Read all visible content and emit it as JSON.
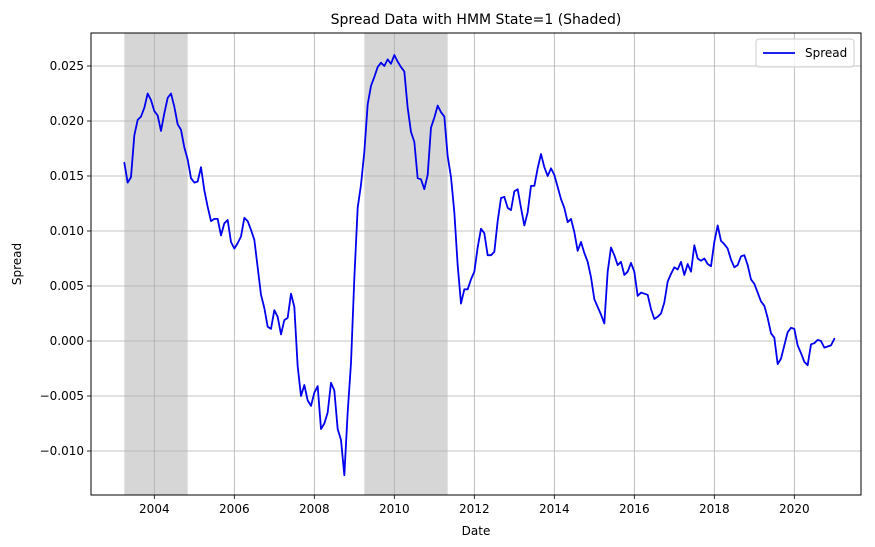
{
  "chart_data": {
    "type": "line",
    "title": "Spread Data with HMM State=1 (Shaded)",
    "xlabel": "Date",
    "ylabel": "Spread",
    "xlim": [
      "2002-06-01",
      "2021-09-01"
    ],
    "ylim": [
      -0.014,
      0.028
    ],
    "x_ticks": [
      "2004",
      "2006",
      "2008",
      "2010",
      "2012",
      "2014",
      "2016",
      "2018",
      "2020"
    ],
    "y_ticks": [
      "−0.010",
      "−0.005",
      "0.000",
      "0.005",
      "0.010",
      "0.015",
      "0.020",
      "0.025"
    ],
    "y_tick_values": [
      -0.01,
      -0.005,
      0.0,
      0.005,
      0.01,
      0.015,
      0.02,
      0.025
    ],
    "grid": true,
    "legend": {
      "placement": "top-right",
      "entries": [
        "Spread"
      ]
    },
    "shaded_regions": [
      {
        "start": "2003-04-01",
        "end": "2004-11-01",
        "color": "#d6d6d6"
      },
      {
        "start": "2009-04-01",
        "end": "2011-05-01",
        "color": "#d6d6d6"
      }
    ],
    "series": [
      {
        "name": "Spread",
        "color": "#0000ee",
        "points": [
          [
            "2003-04-01",
            0.0162
          ],
          [
            "2003-05-01",
            0.0144
          ],
          [
            "2003-06-01",
            0.0149
          ],
          [
            "2003-07-01",
            0.0187
          ],
          [
            "2003-08-01",
            0.0201
          ],
          [
            "2003-09-01",
            0.0204
          ],
          [
            "2003-10-01",
            0.0212
          ],
          [
            "2003-11-01",
            0.0225
          ],
          [
            "2003-12-01",
            0.0219
          ],
          [
            "2004-01-01",
            0.0209
          ],
          [
            "2004-02-01",
            0.0205
          ],
          [
            "2004-03-01",
            0.0191
          ],
          [
            "2004-04-01",
            0.0207
          ],
          [
            "2004-05-01",
            0.0221
          ],
          [
            "2004-06-01",
            0.0225
          ],
          [
            "2004-07-01",
            0.0213
          ],
          [
            "2004-08-01",
            0.0197
          ],
          [
            "2004-09-01",
            0.0192
          ],
          [
            "2004-10-01",
            0.0176
          ],
          [
            "2004-11-01",
            0.0165
          ],
          [
            "2004-12-01",
            0.0148
          ],
          [
            "2005-01-01",
            0.0144
          ],
          [
            "2005-02-01",
            0.0145
          ],
          [
            "2005-03-01",
            0.0158
          ],
          [
            "2005-04-01",
            0.0137
          ],
          [
            "2005-05-01",
            0.0122
          ],
          [
            "2005-06-01",
            0.0109
          ],
          [
            "2005-07-01",
            0.0111
          ],
          [
            "2005-08-01",
            0.0111
          ],
          [
            "2005-09-01",
            0.0096
          ],
          [
            "2005-10-01",
            0.0107
          ],
          [
            "2005-11-01",
            0.011
          ],
          [
            "2005-12-01",
            0.009
          ],
          [
            "2006-01-01",
            0.0084
          ],
          [
            "2006-02-01",
            0.0089
          ],
          [
            "2006-03-01",
            0.0095
          ],
          [
            "2006-04-01",
            0.0112
          ],
          [
            "2006-05-01",
            0.0109
          ],
          [
            "2006-06-01",
            0.0101
          ],
          [
            "2006-07-01",
            0.0092
          ],
          [
            "2006-08-01",
            0.0067
          ],
          [
            "2006-09-01",
            0.0042
          ],
          [
            "2006-10-01",
            0.003
          ],
          [
            "2006-11-01",
            0.0013
          ],
          [
            "2006-12-01",
            0.0011
          ],
          [
            "2007-01-01",
            0.0028
          ],
          [
            "2007-02-01",
            0.0022
          ],
          [
            "2007-03-01",
            0.0006
          ],
          [
            "2007-04-01",
            0.0019
          ],
          [
            "2007-05-01",
            0.0021
          ],
          [
            "2007-06-01",
            0.0043
          ],
          [
            "2007-07-01",
            0.0031
          ],
          [
            "2007-08-01",
            -0.0023
          ],
          [
            "2007-09-01",
            -0.005
          ],
          [
            "2007-10-01",
            -0.004
          ],
          [
            "2007-11-01",
            -0.0054
          ],
          [
            "2007-12-01",
            -0.0059
          ],
          [
            "2008-01-01",
            -0.0047
          ],
          [
            "2008-02-01",
            -0.0041
          ],
          [
            "2008-03-01",
            -0.008
          ],
          [
            "2008-04-01",
            -0.0075
          ],
          [
            "2008-05-01",
            -0.0065
          ],
          [
            "2008-06-01",
            -0.0038
          ],
          [
            "2008-07-01",
            -0.0045
          ],
          [
            "2008-08-01",
            -0.008
          ],
          [
            "2008-09-01",
            -0.009
          ],
          [
            "2008-10-01",
            -0.0122
          ],
          [
            "2008-11-01",
            -0.0065
          ],
          [
            "2008-12-01",
            -0.002
          ],
          [
            "2009-01-01",
            0.0057
          ],
          [
            "2009-02-01",
            0.0121
          ],
          [
            "2009-03-01",
            0.0142
          ],
          [
            "2009-04-01",
            0.0172
          ],
          [
            "2009-05-01",
            0.0215
          ],
          [
            "2009-06-01",
            0.0232
          ],
          [
            "2009-07-01",
            0.024
          ],
          [
            "2009-08-01",
            0.0249
          ],
          [
            "2009-09-01",
            0.0253
          ],
          [
            "2009-10-01",
            0.025
          ],
          [
            "2009-11-01",
            0.0256
          ],
          [
            "2009-12-01",
            0.0252
          ],
          [
            "2010-01-01",
            0.026
          ],
          [
            "2010-02-01",
            0.0254
          ],
          [
            "2010-03-01",
            0.0249
          ],
          [
            "2010-04-01",
            0.0245
          ],
          [
            "2010-05-01",
            0.0212
          ],
          [
            "2010-06-01",
            0.019
          ],
          [
            "2010-07-01",
            0.0181
          ],
          [
            "2010-08-01",
            0.0148
          ],
          [
            "2010-09-01",
            0.0147
          ],
          [
            "2010-10-01",
            0.0138
          ],
          [
            "2010-11-01",
            0.0151
          ],
          [
            "2010-12-01",
            0.0194
          ],
          [
            "2011-01-01",
            0.0203
          ],
          [
            "2011-02-01",
            0.0214
          ],
          [
            "2011-03-01",
            0.0208
          ],
          [
            "2011-04-01",
            0.0204
          ],
          [
            "2011-05-01",
            0.0168
          ],
          [
            "2011-06-01",
            0.0149
          ],
          [
            "2011-07-01",
            0.0117
          ],
          [
            "2011-08-01",
            0.0069
          ],
          [
            "2011-09-01",
            0.0034
          ],
          [
            "2011-10-01",
            0.0047
          ],
          [
            "2011-11-01",
            0.0047
          ],
          [
            "2011-12-01",
            0.0056
          ],
          [
            "2012-01-01",
            0.0063
          ],
          [
            "2012-02-01",
            0.0085
          ],
          [
            "2012-03-01",
            0.0102
          ],
          [
            "2012-04-01",
            0.0098
          ],
          [
            "2012-05-01",
            0.0078
          ],
          [
            "2012-06-01",
            0.0078
          ],
          [
            "2012-07-01",
            0.0081
          ],
          [
            "2012-08-01",
            0.0109
          ],
          [
            "2012-09-01",
            0.013
          ],
          [
            "2012-10-01",
            0.0131
          ],
          [
            "2012-11-01",
            0.0121
          ],
          [
            "2012-12-01",
            0.0119
          ],
          [
            "2013-01-01",
            0.0136
          ],
          [
            "2013-02-01",
            0.0138
          ],
          [
            "2013-03-01",
            0.0121
          ],
          [
            "2013-04-01",
            0.0105
          ],
          [
            "2013-05-01",
            0.0117
          ],
          [
            "2013-06-01",
            0.0141
          ],
          [
            "2013-07-01",
            0.0141
          ],
          [
            "2013-08-01",
            0.0157
          ],
          [
            "2013-09-01",
            0.017
          ],
          [
            "2013-10-01",
            0.0158
          ],
          [
            "2013-11-01",
            0.015
          ],
          [
            "2013-12-01",
            0.0157
          ],
          [
            "2014-01-01",
            0.0151
          ],
          [
            "2014-02-01",
            0.014
          ],
          [
            "2014-03-01",
            0.0129
          ],
          [
            "2014-04-01",
            0.0121
          ],
          [
            "2014-05-01",
            0.0108
          ],
          [
            "2014-06-01",
            0.0111
          ],
          [
            "2014-07-01",
            0.0099
          ],
          [
            "2014-08-01",
            0.0082
          ],
          [
            "2014-09-01",
            0.009
          ],
          [
            "2014-10-01",
            0.008
          ],
          [
            "2014-11-01",
            0.0072
          ],
          [
            "2014-12-01",
            0.0058
          ],
          [
            "2015-01-01",
            0.0038
          ],
          [
            "2015-02-01",
            0.0031
          ],
          [
            "2015-03-01",
            0.0024
          ],
          [
            "2015-04-01",
            0.0016
          ],
          [
            "2015-05-01",
            0.0063
          ],
          [
            "2015-06-01",
            0.0085
          ],
          [
            "2015-07-01",
            0.0078
          ],
          [
            "2015-08-01",
            0.0069
          ],
          [
            "2015-09-01",
            0.0072
          ],
          [
            "2015-10-01",
            0.006
          ],
          [
            "2015-11-01",
            0.0063
          ],
          [
            "2015-12-01",
            0.0071
          ],
          [
            "2016-01-01",
            0.0063
          ],
          [
            "2016-02-01",
            0.0041
          ],
          [
            "2016-03-01",
            0.0044
          ],
          [
            "2016-04-01",
            0.0043
          ],
          [
            "2016-05-01",
            0.0042
          ],
          [
            "2016-06-01",
            0.0029
          ],
          [
            "2016-07-01",
            0.002
          ],
          [
            "2016-08-01",
            0.0022
          ],
          [
            "2016-09-01",
            0.0025
          ],
          [
            "2016-10-01",
            0.0035
          ],
          [
            "2016-11-01",
            0.0054
          ],
          [
            "2016-12-01",
            0.0061
          ],
          [
            "2017-01-01",
            0.0067
          ],
          [
            "2017-02-01",
            0.0065
          ],
          [
            "2017-03-01",
            0.0072
          ],
          [
            "2017-04-01",
            0.006
          ],
          [
            "2017-05-01",
            0.007
          ],
          [
            "2017-06-01",
            0.0063
          ],
          [
            "2017-07-01",
            0.0087
          ],
          [
            "2017-08-01",
            0.0075
          ],
          [
            "2017-09-01",
            0.0073
          ],
          [
            "2017-10-01",
            0.0075
          ],
          [
            "2017-11-01",
            0.007
          ],
          [
            "2017-12-01",
            0.0068
          ],
          [
            "2018-01-01",
            0.009
          ],
          [
            "2018-02-01",
            0.0105
          ],
          [
            "2018-03-01",
            0.0091
          ],
          [
            "2018-04-01",
            0.0088
          ],
          [
            "2018-05-01",
            0.0084
          ],
          [
            "2018-06-01",
            0.0074
          ],
          [
            "2018-07-01",
            0.0067
          ],
          [
            "2018-08-01",
            0.0069
          ],
          [
            "2018-09-01",
            0.0077
          ],
          [
            "2018-10-01",
            0.0078
          ],
          [
            "2018-11-01",
            0.0069
          ],
          [
            "2018-12-01",
            0.0056
          ],
          [
            "2019-01-01",
            0.0052
          ],
          [
            "2019-02-01",
            0.0044
          ],
          [
            "2019-03-01",
            0.0036
          ],
          [
            "2019-04-01",
            0.0032
          ],
          [
            "2019-05-01",
            0.0021
          ],
          [
            "2019-06-01",
            0.0007
          ],
          [
            "2019-07-01",
            0.0003
          ],
          [
            "2019-08-01",
            -0.0021
          ],
          [
            "2019-09-01",
            -0.0016
          ],
          [
            "2019-10-01",
            -0.0004
          ],
          [
            "2019-11-01",
            0.0008
          ],
          [
            "2019-12-01",
            0.0012
          ],
          [
            "2020-01-01",
            0.0011
          ],
          [
            "2020-02-01",
            -0.0004
          ],
          [
            "2020-03-01",
            -0.0011
          ],
          [
            "2020-04-01",
            -0.0019
          ],
          [
            "2020-05-01",
            -0.0022
          ],
          [
            "2020-06-01",
            -0.0003
          ],
          [
            "2020-07-01",
            -0.0002
          ],
          [
            "2020-08-01",
            0.0001
          ],
          [
            "2020-09-01",
            0.0
          ],
          [
            "2020-10-01",
            -0.0006
          ],
          [
            "2020-11-01",
            -0.0005
          ],
          [
            "2020-12-01",
            -0.0004
          ],
          [
            "2021-01-01",
            0.0002
          ]
        ]
      }
    ]
  }
}
